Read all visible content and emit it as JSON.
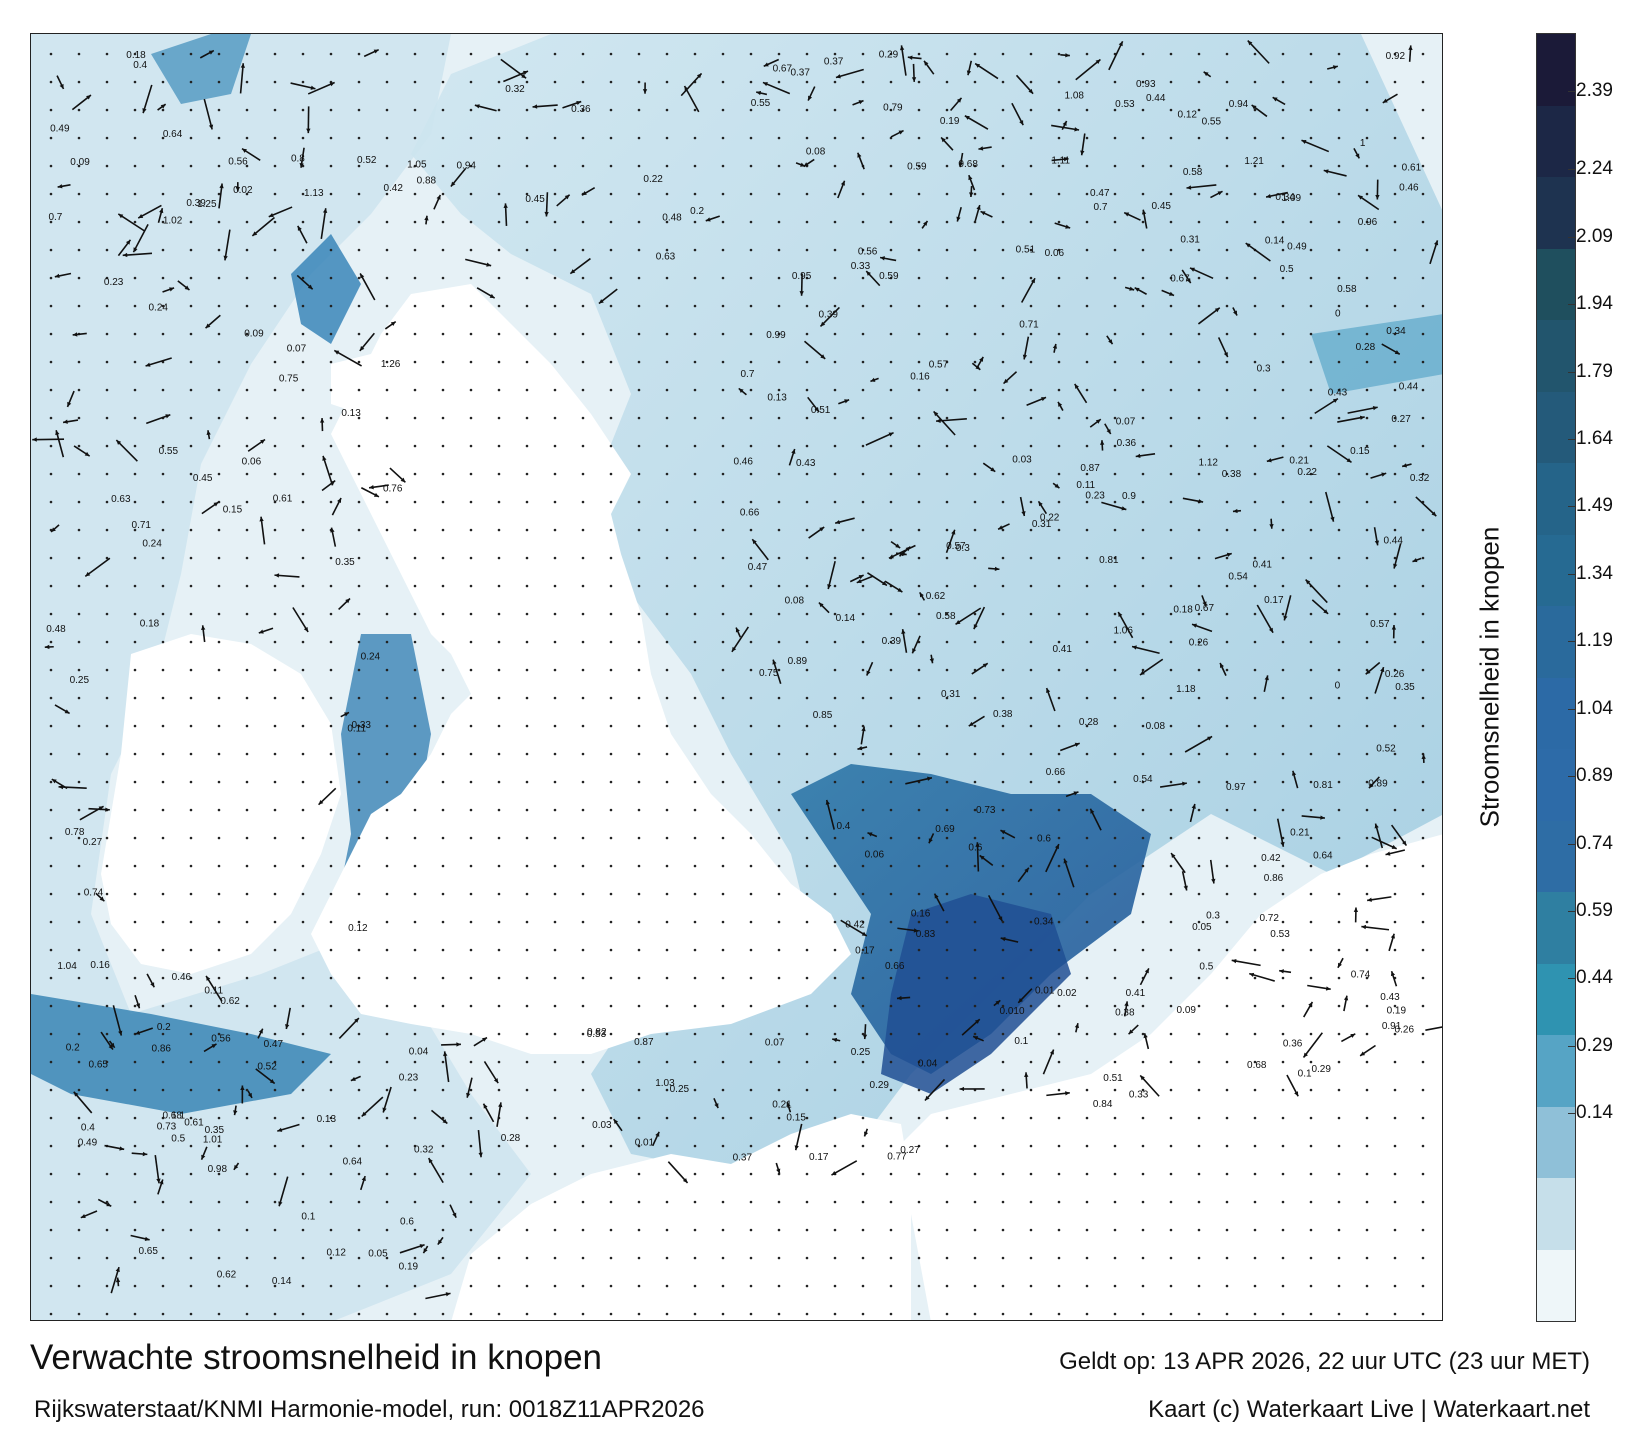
{
  "map": {
    "title": "Verwachte stroomsnelheid in knopen",
    "valid_time": "Geldt op: 13 APR 2026, 22 uur UTC (23 uur MET)",
    "model_run": "Rijkswaterstaat/KNMI Harmonie-model, run: 0018Z11APR2026",
    "credit": "Kaart (c) Waterkaart Live | Waterkaart.net"
  },
  "legend": {
    "title": "Stroomsnelheid in knopen",
    "ticks": [
      "2.39",
      "2.24",
      "2.09",
      "1.94",
      "1.79",
      "1.64",
      "1.49",
      "1.34",
      "1.19",
      "1.04",
      "0.89",
      "0.74",
      "0.59",
      "0.44",
      "0.29",
      "0.14"
    ],
    "colors": [
      "#1b1a38",
      "#1c2746",
      "#1e3350",
      "#1f4f5e",
      "#22556d",
      "#245a7a",
      "#256489",
      "#266a92",
      "#2a6a9c",
      "#2c6aa6",
      "#2d6ba8",
      "#2e6da5",
      "#2f7fa1",
      "#2f93b1",
      "#56a4c5",
      "#8fc0d8",
      "#c6dfea",
      "#eef6f9"
    ]
  },
  "labels": [
    {
      "t": "0.17"
    },
    {
      "t": "0.19"
    },
    {
      "t": "0.16"
    },
    {
      "t": "0.09"
    },
    {
      "t": "0.15"
    },
    {
      "t": "0.14"
    },
    {
      "t": "0.13"
    },
    {
      "t": "0.1"
    },
    {
      "t": "0.12"
    },
    {
      "t": "0.11"
    },
    {
      "t": "0.08"
    },
    {
      "t": "0.07"
    },
    {
      "t": "0.06"
    },
    {
      "t": "0.05"
    },
    {
      "t": "0.04"
    },
    {
      "t": "0.26"
    },
    {
      "t": "0.24"
    },
    {
      "t": "0.36"
    },
    {
      "t": "0.22"
    },
    {
      "t": "0.32"
    },
    {
      "t": "0.29"
    },
    {
      "t": "0.25"
    },
    {
      "t": "0.28"
    },
    {
      "t": "0.2"
    },
    {
      "t": "0.43"
    },
    {
      "t": "0.51"
    },
    {
      "t": "0.55"
    },
    {
      "t": "0.49"
    },
    {
      "t": "0.37"
    },
    {
      "t": "0.31"
    },
    {
      "t": "0.38"
    },
    {
      "t": "0.39"
    },
    {
      "t": "0.41"
    },
    {
      "t": "0.47"
    },
    {
      "t": "0.46"
    },
    {
      "t": "0.5"
    },
    {
      "t": "0.45"
    },
    {
      "t": "0.52"
    },
    {
      "t": "0.44"
    },
    {
      "t": "0.34"
    },
    {
      "t": "0.33"
    },
    {
      "t": "0.42"
    },
    {
      "t": "0.35"
    },
    {
      "t": "0.27"
    },
    {
      "t": "0.21"
    },
    {
      "t": "0.23"
    },
    {
      "t": "0.18"
    },
    {
      "t": "0.3"
    },
    {
      "t": "0.62"
    },
    {
      "t": "0.64"
    },
    {
      "t": "0.68"
    },
    {
      "t": "0.61"
    },
    {
      "t": "0.73"
    },
    {
      "t": "0.75"
    },
    {
      "t": "0.74"
    },
    {
      "t": "0.58"
    },
    {
      "t": "0.57"
    },
    {
      "t": "0.53"
    },
    {
      "t": "0.56"
    },
    {
      "t": "0.7"
    },
    {
      "t": "0.77"
    },
    {
      "t": "0.86"
    },
    {
      "t": "0.89"
    },
    {
      "t": "0.9"
    },
    {
      "t": "0.66"
    },
    {
      "t": "0.71"
    },
    {
      "t": "0.78"
    },
    {
      "t": "0.81"
    },
    {
      "t": "0.87"
    },
    {
      "t": "0.94"
    },
    {
      "t": "0.95"
    },
    {
      "t": "0.99"
    },
    {
      "t": "1.05"
    },
    {
      "t": "1.09"
    },
    {
      "t": "1.13"
    },
    {
      "t": "1.18"
    },
    {
      "t": "1.25"
    },
    {
      "t": "1.26"
    },
    {
      "t": "1.21"
    },
    {
      "t": "1.06"
    },
    {
      "t": "1.08"
    },
    {
      "t": "1.11"
    },
    {
      "t": "1.01"
    },
    {
      "t": "1.03"
    },
    {
      "t": "1.1"
    },
    {
      "t": "1"
    },
    {
      "t": "0.97"
    },
    {
      "t": "0.93"
    },
    {
      "t": "0.91"
    },
    {
      "t": "0.84"
    },
    {
      "t": "0.83"
    },
    {
      "t": "0.82"
    },
    {
      "t": "0.8"
    },
    {
      "t": "0.67"
    },
    {
      "t": "0.63"
    },
    {
      "t": "0.59"
    },
    {
      "t": "0.6"
    },
    {
      "t": "0.48"
    },
    {
      "t": "0.4"
    },
    {
      "t": "0.03"
    },
    {
      "t": "0.02"
    },
    {
      "t": "0.01"
    },
    {
      "t": "0"
    },
    {
      "t": "0.010"
    },
    {
      "t": "0.26"
    },
    {
      "t": "0.18"
    },
    {
      "t": "0.33"
    },
    {
      "t": "0.06"
    },
    {
      "t": "0.09"
    },
    {
      "t": "0.13"
    },
    {
      "t": "0.37"
    },
    {
      "t": "0.55"
    },
    {
      "t": "0.65"
    },
    {
      "t": "0.54"
    },
    {
      "t": "0.67"
    },
    {
      "t": "0.49"
    },
    {
      "t": "0.39"
    },
    {
      "t": "0.31"
    },
    {
      "t": "0.45"
    },
    {
      "t": "0.42"
    },
    {
      "t": "0.29"
    },
    {
      "t": "0.35"
    },
    {
      "t": "0.22"
    },
    {
      "t": "0.24"
    },
    {
      "t": "0.43"
    },
    {
      "t": "0.5"
    },
    {
      "t": "0.19"
    },
    {
      "t": "0.23"
    },
    {
      "t": "0.14"
    },
    {
      "t": "0.16"
    },
    {
      "t": "0.2"
    },
    {
      "t": "0.28"
    },
    {
      "t": "0.17"
    },
    {
      "t": "0.15"
    },
    {
      "t": "0.12"
    },
    {
      "t": "0.11"
    },
    {
      "t": "0.1"
    },
    {
      "t": "0.08"
    },
    {
      "t": "0.07"
    },
    {
      "t": "0.27"
    },
    {
      "t": "0.21"
    },
    {
      "t": "0.32"
    },
    {
      "t": "0.36"
    },
    {
      "t": "0.34"
    },
    {
      "t": "0.25"
    },
    {
      "t": "0.3"
    },
    {
      "t": "0.38"
    },
    {
      "t": "0.41"
    },
    {
      "t": "0.44"
    },
    {
      "t": "0.46"
    },
    {
      "t": "0.47"
    },
    {
      "t": "0.4"
    },
    {
      "t": "0.51"
    },
    {
      "t": "0.52"
    },
    {
      "t": "0.53"
    },
    {
      "t": "0.56"
    },
    {
      "t": "0.57"
    },
    {
      "t": "0.58"
    },
    {
      "t": "0.6"
    },
    {
      "t": "0.61"
    },
    {
      "t": "0.62"
    },
    {
      "t": "0.64"
    },
    {
      "t": "0.66"
    },
    {
      "t": "0.68"
    },
    {
      "t": "0.7"
    },
    {
      "t": "0.72"
    },
    {
      "t": "0.73"
    },
    {
      "t": "0.74"
    },
    {
      "t": "0.75"
    },
    {
      "t": "0.76"
    },
    {
      "t": "0.79"
    },
    {
      "t": "0.81"
    },
    {
      "t": "0.85"
    },
    {
      "t": "0.86"
    },
    {
      "t": "0.87"
    },
    {
      "t": "0.88"
    },
    {
      "t": "0.89"
    },
    {
      "t": "0.92"
    },
    {
      "t": "0.94"
    },
    {
      "t": "0.96"
    },
    {
      "t": "0.98"
    },
    {
      "t": "1.02"
    },
    {
      "t": "1.04"
    },
    {
      "t": "1.12"
    },
    {
      "t": "0.04"
    },
    {
      "t": "0.05"
    },
    {
      "t": "0.03"
    },
    {
      "t": "0.02"
    },
    {
      "t": "0.01"
    },
    {
      "t": "0"
    },
    {
      "t": "0.06"
    },
    {
      "t": "0.07"
    },
    {
      "t": "0.08"
    },
    {
      "t": "0.09"
    },
    {
      "t": "0.1"
    },
    {
      "t": "0.11"
    },
    {
      "t": "0.12"
    },
    {
      "t": "0.13"
    },
    {
      "t": "0.14"
    },
    {
      "t": "0.15"
    },
    {
      "t": "0.16"
    },
    {
      "t": "0.17"
    },
    {
      "t": "0.18"
    },
    {
      "t": "0.19"
    },
    {
      "t": "0.2"
    },
    {
      "t": "0.21"
    },
    {
      "t": "0.22"
    },
    {
      "t": "0.23"
    },
    {
      "t": "0.24"
    },
    {
      "t": "0.25"
    },
    {
      "t": "0.26"
    },
    {
      "t": "0.27"
    },
    {
      "t": "0.28"
    },
    {
      "t": "0.29"
    },
    {
      "t": "0.3"
    },
    {
      "t": "0.31"
    },
    {
      "t": "0.32"
    },
    {
      "t": "0.33"
    },
    {
      "t": "0.34"
    },
    {
      "t": "0.35"
    },
    {
      "t": "0.36"
    },
    {
      "t": "0.37"
    },
    {
      "t": "0.38"
    },
    {
      "t": "0.39"
    },
    {
      "t": "0.4"
    },
    {
      "t": "0.41"
    },
    {
      "t": "0.42"
    },
    {
      "t": "0.43"
    },
    {
      "t": "0.44"
    },
    {
      "t": "0.45"
    },
    {
      "t": "0.46"
    },
    {
      "t": "0.47"
    },
    {
      "t": "0.48"
    },
    {
      "t": "0.49"
    },
    {
      "t": "0.5"
    },
    {
      "t": "0.51"
    },
    {
      "t": "0.52"
    },
    {
      "t": "0.53"
    },
    {
      "t": "0.54"
    },
    {
      "t": "0.55"
    },
    {
      "t": "0.56"
    },
    {
      "t": "0.57"
    },
    {
      "t": "0.58"
    },
    {
      "t": "0.59"
    },
    {
      "t": "0.6"
    },
    {
      "t": "0.61"
    },
    {
      "t": "0.62"
    },
    {
      "t": "0.63"
    },
    {
      "t": "0.64"
    },
    {
      "t": "0.65"
    },
    {
      "t": "0.66"
    },
    {
      "t": "0.67"
    },
    {
      "t": "0.68"
    },
    {
      "t": "0.69"
    },
    {
      "t": "0.7"
    },
    {
      "t": "0.71"
    }
  ]
}
